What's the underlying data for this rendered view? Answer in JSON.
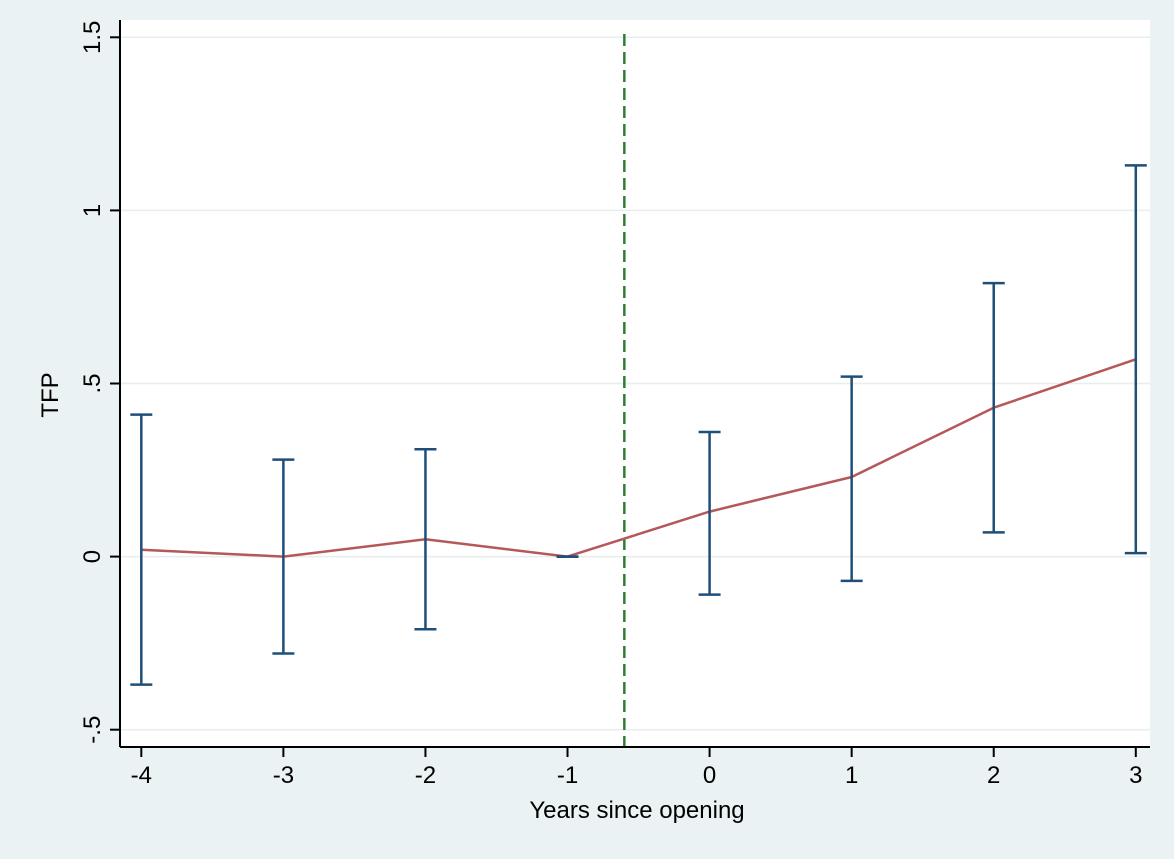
{
  "chart_data": {
    "type": "line",
    "title": "",
    "xlabel": "Years since opening",
    "ylabel": "TFP",
    "x": [
      -4,
      -3,
      -2,
      -1,
      0,
      1,
      2,
      3
    ],
    "y": [
      0.02,
      0.0,
      0.05,
      0.0,
      0.13,
      0.23,
      0.43,
      0.57
    ],
    "ci_lower": [
      -0.37,
      -0.28,
      -0.21,
      0.0,
      -0.11,
      -0.07,
      0.07,
      0.01
    ],
    "ci_upper": [
      0.41,
      0.28,
      0.31,
      0.0,
      0.36,
      0.52,
      0.79,
      1.13
    ],
    "xticks": [
      -4,
      -3,
      -2,
      -1,
      0,
      1,
      2,
      3
    ],
    "xtick_labels": [
      "-4",
      "-3",
      "-2",
      "-1",
      "0",
      "1",
      "2",
      "3"
    ],
    "yticks": [
      -0.5,
      0,
      0.5,
      1,
      1.5
    ],
    "ytick_labels": [
      "-.5",
      "0",
      ".5",
      "1",
      "1.5"
    ],
    "xlim": [
      -4.15,
      3.1
    ],
    "ylim": [
      -0.55,
      1.55
    ],
    "vline_x": -0.6,
    "grid": "horizontal",
    "legend": "none",
    "colors": {
      "background": "#eaf2f3",
      "plot_area": "#ffffff",
      "line": "#b5585a",
      "error_bars": "#1f4e79",
      "vline": "#2e7d32",
      "grid": "#e6eeee"
    }
  }
}
